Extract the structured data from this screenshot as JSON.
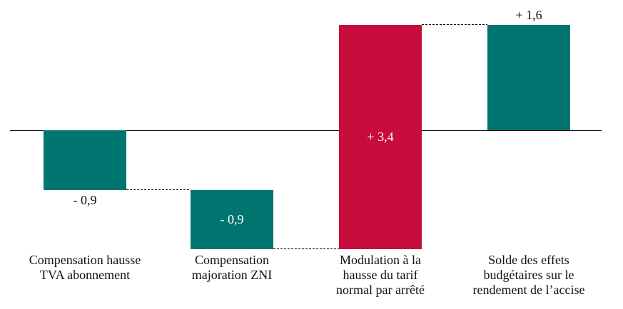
{
  "chart_data": {
    "type": "bar",
    "subtype": "waterfall",
    "title": "",
    "xlabel": "",
    "ylabel": "",
    "categories": [
      "Compensation hausse\nTVA abonnement",
      "Compensation\nmajoration ZNI",
      "Modulation à la\nhausse du tarif\nnormal par arrêté",
      "Solde des effets\nbudgétaires sur le\nrendement de l’accise"
    ],
    "values": [
      -0.9,
      -0.9,
      3.4,
      1.6
    ],
    "runs": [
      {
        "start": 0,
        "end": -0.9
      },
      {
        "start": -0.9,
        "end": -1.8
      },
      {
        "start": -1.8,
        "end": 1.6
      },
      {
        "start": 0,
        "end": 1.6
      }
    ],
    "bar_labels": [
      "- 0,9",
      "- 0,9",
      "+ 3,4",
      "+ 1,6"
    ],
    "bar_colors": [
      "#00756F",
      "#00756F",
      "#C60D3C",
      "#00756F"
    ],
    "label_positions": [
      "below",
      "inside",
      "inside",
      "above"
    ],
    "baseline": 0,
    "ylim": [
      -1.9,
      1.75
    ],
    "grid": false,
    "legend": false,
    "connector_style": "dotted",
    "colors": {
      "teal": "#00756F",
      "red": "#C60D3C",
      "axis": "#000000",
      "connector": "#000000",
      "label_dark": "#111111",
      "label_light": "#ffffff"
    }
  }
}
